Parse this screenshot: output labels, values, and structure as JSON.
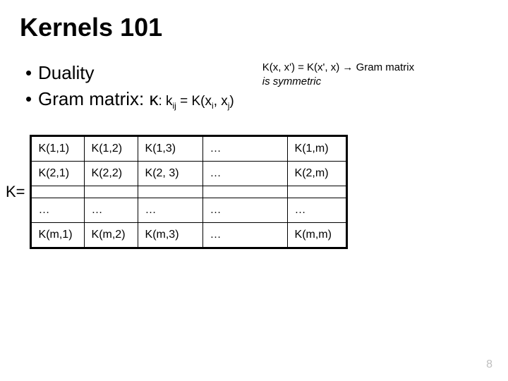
{
  "title": "Kernels 101",
  "bullets": {
    "b1": "Duality",
    "b2_prefix": "Gram matrix:  ",
    "b2_kappa": "κ",
    "b2_def_a": ": k",
    "b2_def_ij": "ij",
    "b2_def_b": " = K(",
    "b2_def_x1": "x",
    "b2_def_i": "i",
    "b2_def_c": ", ",
    "b2_def_x2": "x",
    "b2_def_j": "j",
    "b2_def_d": ")"
  },
  "note": {
    "line1a": "K(x, x') = K(x', x) ",
    "arrow": "→",
    "line1b": " Gram matrix",
    "line2": "is symmetric"
  },
  "klabel": "K=",
  "table": {
    "rows": [
      [
        "K(1,1)",
        "K(1,2)",
        "K(1,3)",
        "…",
        "K(1,m)"
      ],
      [
        "K(2,1)",
        "K(2,2)",
        "K(2, 3)",
        "…",
        "K(2,m)"
      ],
      [
        "",
        "",
        "",
        "",
        ""
      ],
      [
        "…",
        "…",
        "…",
        "…",
        "…"
      ],
      [
        "K(m,1)",
        "K(m,2)",
        "K(m,3)",
        "…",
        "K(m,m)"
      ]
    ]
  },
  "pagenum": "8"
}
